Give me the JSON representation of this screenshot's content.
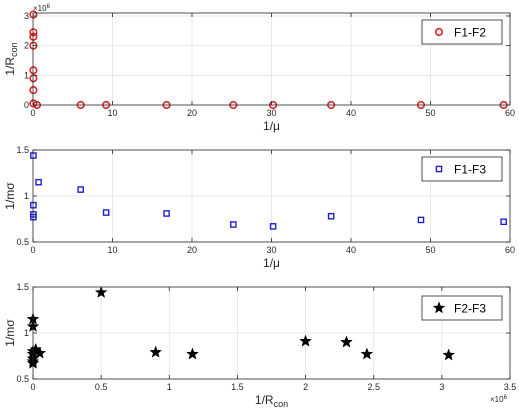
{
  "chart_data": [
    {
      "type": "scatter",
      "xlabel": "1/μ",
      "ylabel": "1/R",
      "ylabel_sub": "con",
      "y_multiplier": "×10",
      "y_multiplier_exp": "6",
      "xlim": [
        0,
        60
      ],
      "ylim": [
        0,
        3.1
      ],
      "xticks": [
        0,
        10,
        20,
        30,
        40,
        50,
        60
      ],
      "yticks": [
        0,
        1,
        2,
        3
      ],
      "grid": true,
      "legend_position": "top-right",
      "marker": "circle",
      "color": "#d62728",
      "series": [
        {
          "name": "F1-F2",
          "points": [
            [
              0.05,
              3.05
            ],
            [
              0.05,
              2.45
            ],
            [
              0.05,
              2.3
            ],
            [
              0.05,
              2.0
            ],
            [
              0.05,
              1.17
            ],
            [
              0.05,
              0.9
            ],
            [
              0.05,
              0.5
            ],
            [
              0.05,
              0.05
            ],
            [
              0.5,
              0.0
            ],
            [
              6.0,
              0.0
            ],
            [
              9.2,
              0.0
            ],
            [
              16.8,
              0.0
            ],
            [
              25.2,
              0.0
            ],
            [
              30.2,
              0.0
            ],
            [
              37.5,
              0.0
            ],
            [
              48.8,
              0.0
            ],
            [
              59.2,
              0.0
            ]
          ]
        }
      ]
    },
    {
      "type": "scatter",
      "xlabel": "1/μ",
      "ylabel": "1/mσ",
      "xlim": [
        0,
        60
      ],
      "ylim": [
        0.5,
        1.5
      ],
      "xticks": [
        0,
        10,
        20,
        30,
        40,
        50,
        60
      ],
      "yticks": [
        0.5,
        1,
        1.5
      ],
      "grid": true,
      "legend_position": "top-right",
      "marker": "square",
      "color": "#1f1fcf",
      "series": [
        {
          "name": "F1-F3",
          "points": [
            [
              0.05,
              1.44
            ],
            [
              0.05,
              0.9
            ],
            [
              0.05,
              0.8
            ],
            [
              0.05,
              0.77
            ],
            [
              0.7,
              1.15
            ],
            [
              6.0,
              1.07
            ],
            [
              9.2,
              0.82
            ],
            [
              16.8,
              0.81
            ],
            [
              25.2,
              0.69
            ],
            [
              30.2,
              0.67
            ],
            [
              37.5,
              0.78
            ],
            [
              48.8,
              0.74
            ],
            [
              59.2,
              0.72
            ]
          ]
        }
      ]
    },
    {
      "type": "scatter",
      "xlabel": "1/R",
      "xlabel_sub": "con",
      "ylabel": "1/mσ",
      "x_multiplier": "×10",
      "x_multiplier_exp": "6",
      "xlim": [
        0,
        3.5
      ],
      "ylim": [
        0.5,
        1.5
      ],
      "xticks": [
        0,
        0.5,
        1,
        1.5,
        2,
        2.5,
        3,
        3.5
      ],
      "yticks": [
        0.5,
        1,
        1.5
      ],
      "grid": true,
      "legend_position": "top-right",
      "marker": "star",
      "color": "#000000",
      "series": [
        {
          "name": "F2-F3",
          "points": [
            [
              0.0,
              1.15
            ],
            [
              0.0,
              1.07
            ],
            [
              0.0,
              0.8
            ],
            [
              0.0,
              0.77
            ],
            [
              0.0,
              0.72
            ],
            [
              0.0,
              0.69
            ],
            [
              0.0,
              0.67
            ],
            [
              0.02,
              0.82
            ],
            [
              0.05,
              0.78
            ],
            [
              0.5,
              1.44
            ],
            [
              0.9,
              0.79
            ],
            [
              1.17,
              0.77
            ],
            [
              2.0,
              0.91
            ],
            [
              2.3,
              0.9
            ],
            [
              2.45,
              0.77
            ],
            [
              3.05,
              0.76
            ]
          ]
        }
      ]
    }
  ]
}
